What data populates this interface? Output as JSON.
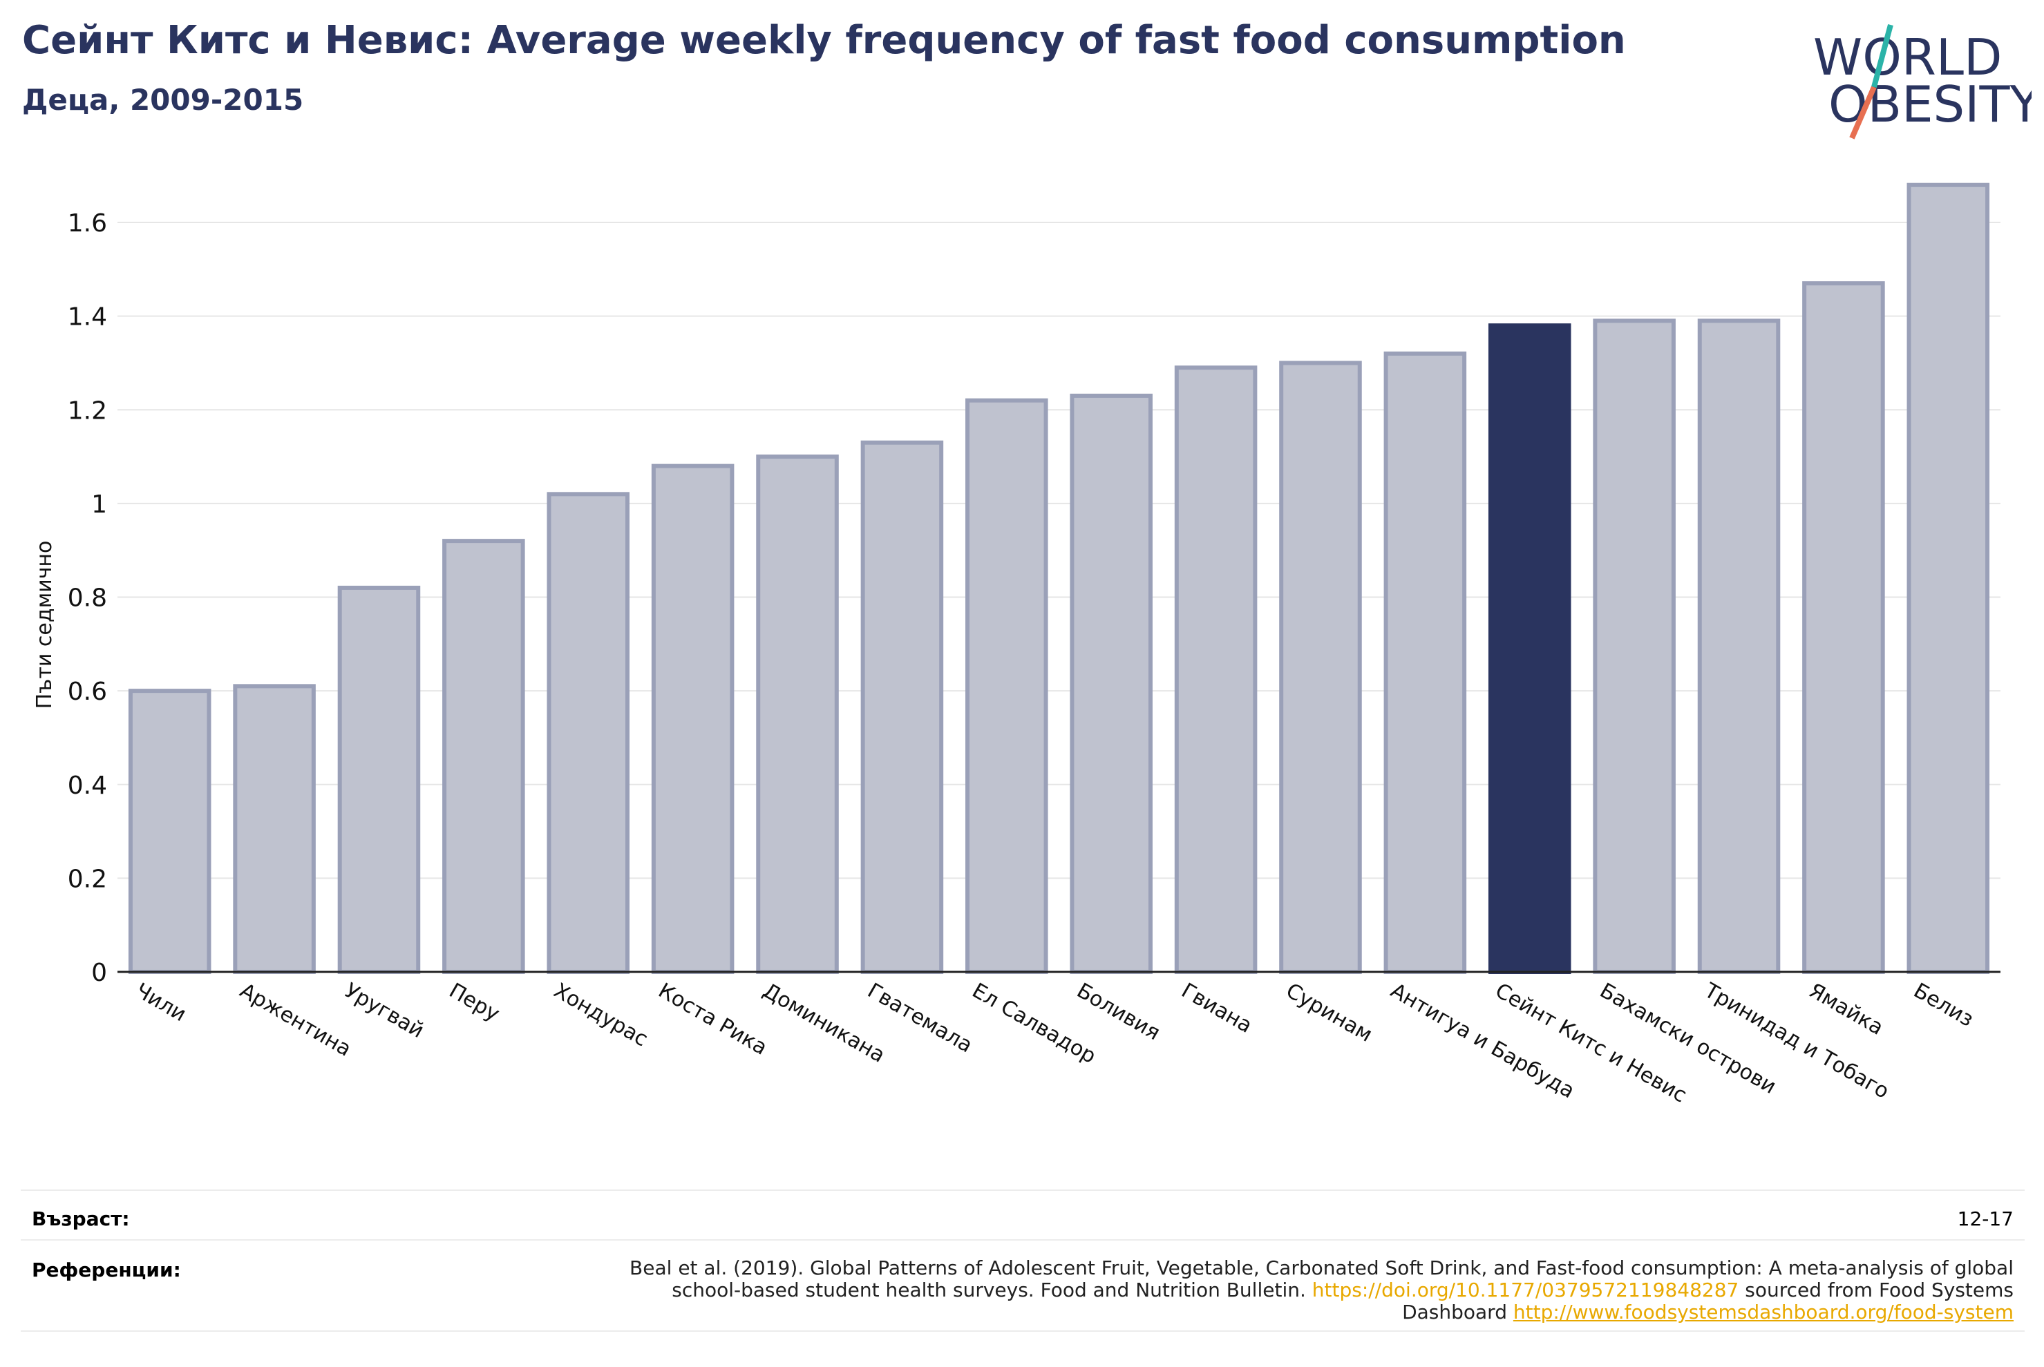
{
  "header": {
    "title": "Сейнт Китс и Невис: Average weekly frequency of fast food consumption",
    "subtitle": "Деца, 2009-2015"
  },
  "logo": {
    "line1": "WORLD",
    "line2": "OBESITY"
  },
  "chart_data": {
    "type": "bar",
    "title": "Сейнт Китс и Невис: Average weekly frequency of fast food consumption",
    "subtitle": "Деца, 2009-2015",
    "ylabel": "Пъти седмично",
    "xlabel": "",
    "ylim": [
      0,
      1.7
    ],
    "yticks": [
      0,
      0.2,
      0.4,
      0.6,
      0.8,
      1,
      1.2,
      1.4,
      1.6
    ],
    "ytick_labels": [
      "0",
      "0.2",
      "0.4",
      "0.6",
      "0.8",
      "1",
      "1.2",
      "1.4",
      "1.6"
    ],
    "grid": true,
    "categories": [
      "Чили",
      "Аржентина",
      "Уругвай",
      "Перу",
      "Хондурас",
      "Коста Рика",
      "Доминикана",
      "Гватемала",
      "Ел Салвадор",
      "Боливия",
      "Гвиана",
      "Суринам",
      "Антигуа и Барбуда",
      "Сейнт Китс и Невис",
      "Бахамски острови",
      "Тринидад и Тобаго",
      "Ямайка",
      "Белиз"
    ],
    "values": [
      0.6,
      0.61,
      0.82,
      0.92,
      1.02,
      1.08,
      1.1,
      1.13,
      1.22,
      1.23,
      1.29,
      1.3,
      1.32,
      1.38,
      1.39,
      1.39,
      1.47,
      1.68
    ],
    "highlight": "Сейнт Китс и Невис",
    "colors": {
      "bar": "#bfc2cf",
      "bar_edge": "#9aa0b8",
      "highlight": "#2a345f"
    }
  },
  "footer": {
    "age_label": "Възраст:",
    "age_value": "12-17",
    "references_label": "Референции:",
    "ref_text_1": "Beal et al. (2019). Global Patterns of Adolescent Fruit, Vegetable, Carbonated Soft Drink, and Fast-food consumption: A meta-analysis of global school-based student health surveys. Food and Nutrition Bulletin. ",
    "ref_link_1": "https://doi.org/10.1177/0379572119848287",
    "ref_text_2": " sourced from Food Systems Dashboard ",
    "ref_link_2": "http://www.foodsystemsdashboard.org/food-system"
  }
}
